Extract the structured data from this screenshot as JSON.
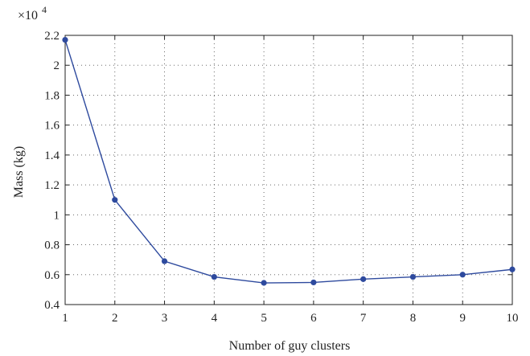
{
  "chart_data": {
    "type": "line",
    "xlabel": "Number of guy clusters",
    "ylabel": "Mass (kg)",
    "y_multiplier_label": "×10",
    "y_multiplier_exponent": "4",
    "xlim": [
      1,
      10
    ],
    "ylim": [
      0.4,
      2.2
    ],
    "xticks": [
      1,
      2,
      3,
      4,
      5,
      6,
      7,
      8,
      9,
      10
    ],
    "yticks": [
      0.4,
      0.6,
      0.8,
      1,
      1.2,
      1.4,
      1.6,
      1.8,
      2,
      2.2
    ],
    "ytick_labels": [
      "0.4",
      "0.6",
      "0.8",
      "1",
      "1.2",
      "1.4",
      "1.6",
      "1.8",
      "2",
      "2.2"
    ],
    "grid": true,
    "series": [
      {
        "color": "#2e4a9e",
        "x": [
          1,
          2,
          3,
          4,
          5,
          6,
          7,
          8,
          9,
          10
        ],
        "y": [
          2.17,
          1.1,
          0.69,
          0.585,
          0.545,
          0.548,
          0.57,
          0.585,
          0.6,
          0.635
        ]
      }
    ]
  }
}
